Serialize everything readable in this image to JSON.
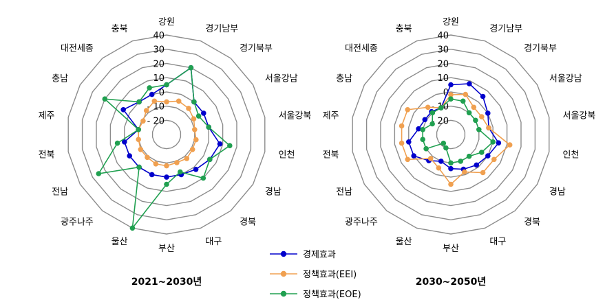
{
  "chart_data": [
    {
      "type": "radar",
      "title": "2021~2030년",
      "categories": [
        "강원",
        "경기남부",
        "경기북부",
        "서울강남",
        "서울강북",
        "인천",
        "경남",
        "경북",
        "대구",
        "부산",
        "울산",
        "광주나주",
        "전남",
        "전북",
        "제주",
        "충남",
        "대전세종",
        "충북"
      ],
      "rlim": [
        -30,
        40
      ],
      "tick_labels": [
        "- 20",
        "- 10",
        "0",
        "10",
        "20",
        "30",
        "40"
      ],
      "tick_values": [
        -20,
        -10,
        0,
        10,
        20,
        30,
        40
      ],
      "grid": true,
      "series": [
        {
          "name": "경제효과",
          "color": "#0000cc",
          "values": [
            5,
            20,
            0,
            0,
            0,
            8,
            5,
            2,
            0,
            0,
            0,
            0,
            0,
            0,
            -10,
            5,
            0,
            0
          ]
        },
        {
          "name": "정책효과(EEI)",
          "color": "#f0a050",
          "values": [
            -7,
            -5,
            -6,
            -8,
            -10,
            -9,
            -9,
            -8,
            -9,
            -8,
            -8,
            -9,
            -9,
            -10,
            -10,
            -11,
            -8,
            -5
          ]
        },
        {
          "name": "정책효과(EOE)",
          "color": "#20a050",
          "values": [
            5,
            20,
            0,
            -4,
            0,
            15,
            5,
            10,
            -2,
            5,
            40,
            0,
            25,
            5,
            -10,
            20,
            0,
            5
          ]
        }
      ]
    },
    {
      "type": "radar",
      "title": "2030~2050년",
      "categories": [
        "강원",
        "경기남부",
        "경기북부",
        "서울강남",
        "서울강북",
        "인천",
        "경남",
        "경북",
        "대구",
        "부산",
        "울산",
        "광주나주",
        "전남",
        "전북",
        "제주",
        "충남",
        "대전세종",
        "충북"
      ],
      "rlim": [
        -30,
        40
      ],
      "tick_labels": [
        "- 20",
        "- 10",
        "0",
        "10",
        "20",
        "30",
        "40"
      ],
      "tick_values": [
        -20,
        -10,
        0,
        10,
        20,
        30,
        40
      ],
      "grid": true,
      "series": [
        {
          "name": "경제효과",
          "color": "#0000cc",
          "values": [
            5,
            8,
            5,
            0,
            -3,
            4,
            0,
            -2,
            -4,
            -6,
            -10,
            -6,
            0,
            0,
            -7,
            -9,
            -9,
            -10
          ]
        },
        {
          "name": "정책효과(EEI)",
          "color": "#f0a050",
          "values": [
            -2,
            0,
            -5,
            -5,
            -3,
            12,
            5,
            5,
            -2,
            5,
            -5,
            -8,
            5,
            5,
            5,
            5,
            -5,
            -10
          ]
        },
        {
          "name": "정책효과(EOE)",
          "color": "#20a050",
          "values": [
            -5,
            -5,
            -10,
            -10,
            -10,
            0,
            -5,
            -10,
            -10,
            -10,
            -20,
            -22,
            -10,
            -10,
            -10,
            -15,
            -10,
            -10
          ]
        }
      ]
    }
  ],
  "legend": {
    "placement": "bottom-center",
    "items": [
      {
        "label": "경제효과",
        "color": "#0000cc"
      },
      {
        "label": "정책효과(EEI)",
        "color": "#f0a050"
      },
      {
        "label": "정책효과(EOE)",
        "color": "#20a050"
      }
    ]
  }
}
